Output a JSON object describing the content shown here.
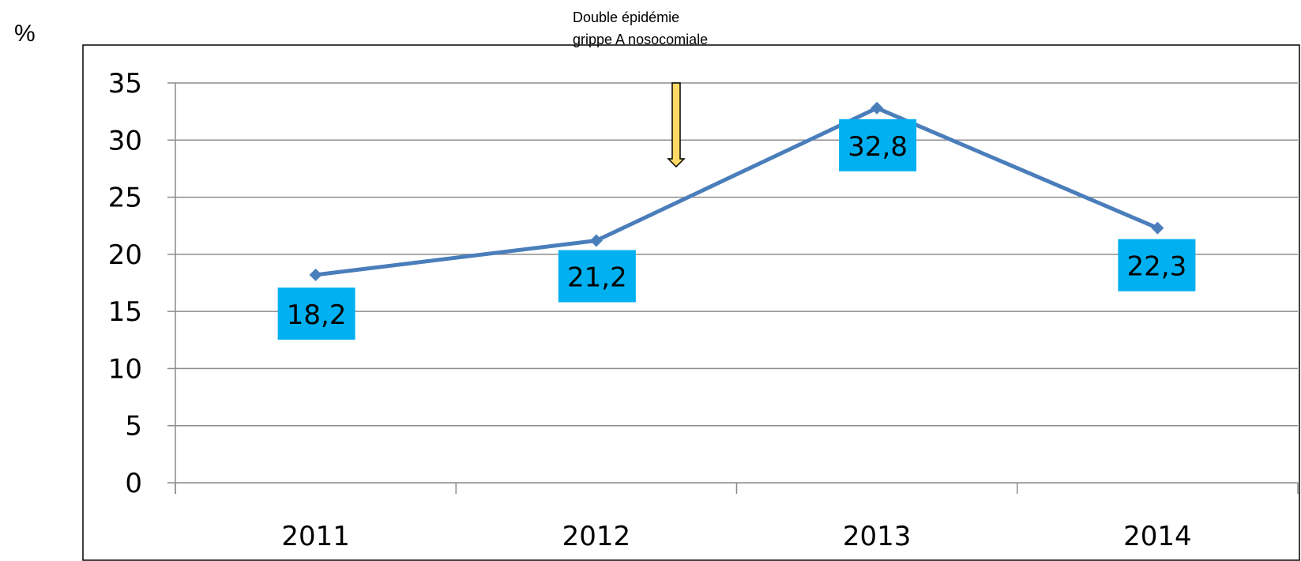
{
  "y_unit_label": "%",
  "chart_data": {
    "type": "line",
    "categories": [
      "2011",
      "2012",
      "2013",
      "2014"
    ],
    "series": [
      {
        "values": [
          18.2,
          21.2,
          32.8,
          22.3
        ]
      }
    ],
    "data_labels": [
      "18,2",
      "21,2",
      "32,8",
      "22,3"
    ],
    "y_ticks": [
      "0",
      "5",
      "10",
      "15",
      "20",
      "25",
      "30",
      "35"
    ],
    "ylim": [
      0,
      35
    ],
    "grid": true,
    "legend": "none",
    "colors": {
      "line": "#4a7ebb",
      "label_bg": "#00b0f0",
      "arrow_fill": "#ffd966",
      "arrow_stroke": "#000000"
    },
    "annotation": {
      "lines": [
        "Double épidémie",
        "grippe A nosocomiale"
      ],
      "target": "2012-2013"
    }
  }
}
